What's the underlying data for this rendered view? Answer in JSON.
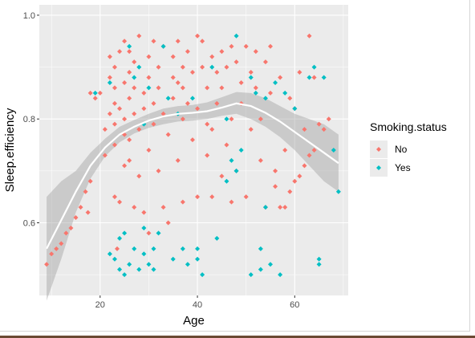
{
  "chart_data": {
    "type": "scatter",
    "title": "",
    "xlabel": "Age",
    "ylabel": "Sleep.efficiency",
    "xlim": [
      7.5,
      71
    ],
    "ylim": [
      0.46,
      1.02
    ],
    "x_ticks": [
      20,
      40,
      60
    ],
    "y_ticks": [
      0.6,
      0.8,
      1.0
    ],
    "y_tick_labels": [
      "0.6",
      "0.8",
      "1.0"
    ],
    "grid": true,
    "legend": {
      "title": "Smoking.status",
      "placement": "right"
    },
    "series": [
      {
        "name": "No",
        "color": "#F8766D",
        "points": [
          [
            9,
            0.52
          ],
          [
            10,
            0.54
          ],
          [
            11,
            0.55
          ],
          [
            12,
            0.56
          ],
          [
            13,
            0.58
          ],
          [
            14,
            0.59
          ],
          [
            15,
            0.61
          ],
          [
            16,
            0.63
          ],
          [
            17,
            0.66
          ],
          [
            17.5,
            0.62
          ],
          [
            18,
            0.68
          ],
          [
            18,
            0.85
          ],
          [
            19,
            0.84
          ],
          [
            20,
            0.85
          ],
          [
            21,
            0.73
          ],
          [
            21,
            0.78
          ],
          [
            22,
            0.81
          ],
          [
            22,
            0.88
          ],
          [
            22,
            0.92
          ],
          [
            23,
            0.75
          ],
          [
            23,
            0.79
          ],
          [
            23,
            0.83
          ],
          [
            23,
            0.86
          ],
          [
            23,
            0.9
          ],
          [
            23,
            0.65
          ],
          [
            23.5,
            0.55
          ],
          [
            24,
            0.64
          ],
          [
            24,
            0.82
          ],
          [
            24,
            0.93
          ],
          [
            25,
            0.77
          ],
          [
            25,
            0.8
          ],
          [
            25,
            0.87
          ],
          [
            25,
            0.95
          ],
          [
            25,
            0.71
          ],
          [
            26,
            0.72
          ],
          [
            26,
            0.76
          ],
          [
            26,
            0.84
          ],
          [
            26,
            0.89
          ],
          [
            26,
            0.93
          ],
          [
            27,
            0.81
          ],
          [
            27,
            0.86
          ],
          [
            27,
            0.63
          ],
          [
            27,
            0.91
          ],
          [
            28,
            0.78
          ],
          [
            28,
            0.69
          ],
          [
            28,
            0.96
          ],
          [
            29,
            0.82
          ],
          [
            29,
            0.85
          ],
          [
            29,
            0.62
          ],
          [
            30,
            0.74
          ],
          [
            30,
            0.88
          ],
          [
            30,
            0.92
          ],
          [
            30,
            0.58
          ],
          [
            31,
            0.79
          ],
          [
            31,
            0.83
          ],
          [
            31,
            0.95
          ],
          [
            32,
            0.7
          ],
          [
            32,
            0.86
          ],
          [
            32,
            0.9
          ],
          [
            33,
            0.63
          ],
          [
            33,
            0.81
          ],
          [
            33,
            0.94
          ],
          [
            34,
            0.77
          ],
          [
            34,
            0.6
          ],
          [
            35,
            0.84
          ],
          [
            35,
            0.88
          ],
          [
            35,
            0.92
          ],
          [
            36,
            0.72
          ],
          [
            36,
            0.87
          ],
          [
            36,
            0.95
          ],
          [
            37,
            0.8
          ],
          [
            37,
            0.86
          ],
          [
            37,
            0.9
          ],
          [
            37,
            0.64
          ],
          [
            38,
            0.93
          ],
          [
            38,
            0.83
          ],
          [
            39,
            0.76
          ],
          [
            39,
            0.89
          ],
          [
            40,
            0.96
          ],
          [
            40,
            0.82
          ],
          [
            40,
            0.65
          ],
          [
            41,
            0.9
          ],
          [
            41,
            0.95
          ],
          [
            42,
            0.73
          ],
          [
            42,
            0.86
          ],
          [
            42,
            0.79
          ],
          [
            43,
            0.78
          ],
          [
            43,
            0.92
          ],
          [
            43,
            0.65
          ],
          [
            44,
            0.83
          ],
          [
            44,
            0.89
          ],
          [
            45,
            0.69
          ],
          [
            45,
            0.93
          ],
          [
            45,
            0.86
          ],
          [
            46,
            0.75
          ],
          [
            46,
            0.9
          ],
          [
            47,
            0.8
          ],
          [
            47,
            0.94
          ],
          [
            47,
            0.64
          ],
          [
            48,
            0.91
          ],
          [
            48,
            0.7
          ],
          [
            49,
            0.83
          ],
          [
            49,
            0.87
          ],
          [
            50,
            0.94
          ],
          [
            50,
            0.65
          ],
          [
            51,
            0.89
          ],
          [
            51,
            0.78
          ],
          [
            52,
            0.93
          ],
          [
            52,
            0.86
          ],
          [
            53,
            0.72
          ],
          [
            53,
            0.8
          ],
          [
            54,
            0.91
          ],
          [
            54,
            0.63
          ],
          [
            55,
            0.85
          ],
          [
            55,
            0.94
          ],
          [
            56,
            0.7
          ],
          [
            56,
            0.67
          ],
          [
            57,
            0.63
          ],
          [
            57,
            0.88
          ],
          [
            58,
            0.74
          ],
          [
            58,
            0.63
          ],
          [
            59,
            0.66
          ],
          [
            59,
            0.84
          ],
          [
            60,
            0.68
          ],
          [
            60,
            0.82
          ],
          [
            61,
            0.69
          ],
          [
            61,
            0.89
          ],
          [
            62,
            0.71
          ],
          [
            62,
            0.78
          ],
          [
            63,
            0.73
          ],
          [
            63,
            0.96
          ],
          [
            64,
            0.74
          ],
          [
            64,
            0.88
          ],
          [
            65,
            0.79
          ],
          [
            66,
            0.78
          ],
          [
            67,
            0.8
          ]
        ]
      },
      {
        "name": "Yes",
        "color": "#00BFC4",
        "points": [
          [
            19,
            0.85
          ],
          [
            22,
            0.87
          ],
          [
            22,
            0.54
          ],
          [
            23,
            0.53
          ],
          [
            24,
            0.57
          ],
          [
            24,
            0.51
          ],
          [
            25,
            0.5
          ],
          [
            25,
            0.58
          ],
          [
            26,
            0.52
          ],
          [
            26,
            0.94
          ],
          [
            27,
            0.55
          ],
          [
            27,
            0.88
          ],
          [
            28,
            0.51
          ],
          [
            28,
            0.9
          ],
          [
            29,
            0.54
          ],
          [
            29,
            0.59
          ],
          [
            29,
            0.79
          ],
          [
            30,
            0.52
          ],
          [
            30,
            0.86
          ],
          [
            31,
            0.55
          ],
          [
            31,
            0.51
          ],
          [
            32,
            0.58
          ],
          [
            33,
            0.94
          ],
          [
            34,
            0.84
          ],
          [
            35,
            0.53
          ],
          [
            36,
            0.81
          ],
          [
            37,
            0.55
          ],
          [
            38,
            0.52
          ],
          [
            39,
            0.84
          ],
          [
            40,
            0.53
          ],
          [
            40,
            0.55
          ],
          [
            41,
            0.5
          ],
          [
            43,
            0.9
          ],
          [
            44,
            0.57
          ],
          [
            46,
            0.68
          ],
          [
            46,
            0.8
          ],
          [
            47,
            0.72
          ],
          [
            48,
            0.96
          ],
          [
            48,
            0.7
          ],
          [
            49,
            0.74
          ],
          [
            51,
            0.5
          ],
          [
            51,
            0.88
          ],
          [
            52,
            0.85
          ],
          [
            53,
            0.51
          ],
          [
            53,
            0.55
          ],
          [
            54,
            0.84
          ],
          [
            54,
            0.63
          ],
          [
            55,
            0.52
          ],
          [
            56,
            0.87
          ],
          [
            57,
            0.5
          ],
          [
            58,
            0.85
          ],
          [
            60,
            0.82
          ],
          [
            63,
            0.88
          ],
          [
            64,
            0.9
          ],
          [
            65,
            0.53
          ],
          [
            65,
            0.52
          ],
          [
            66,
            0.88
          ],
          [
            68,
            0.74
          ],
          [
            69,
            0.66
          ]
        ]
      }
    ],
    "smooth": {
      "x": [
        9,
        12,
        15,
        18,
        21,
        24,
        27,
        30,
        33,
        36,
        39,
        42,
        45,
        48,
        51,
        54,
        57,
        60,
        63,
        66,
        69
      ],
      "y": [
        0.55,
        0.605,
        0.66,
        0.71,
        0.745,
        0.77,
        0.785,
        0.797,
        0.805,
        0.81,
        0.812,
        0.815,
        0.822,
        0.83,
        0.825,
        0.812,
        0.795,
        0.775,
        0.755,
        0.735,
        0.715
      ],
      "lower": [
        0.45,
        0.53,
        0.62,
        0.685,
        0.728,
        0.755,
        0.772,
        0.783,
        0.79,
        0.795,
        0.797,
        0.8,
        0.806,
        0.81,
        0.8,
        0.785,
        0.765,
        0.74,
        0.71,
        0.68,
        0.66
      ],
      "upper": [
        0.65,
        0.68,
        0.7,
        0.735,
        0.762,
        0.785,
        0.798,
        0.81,
        0.82,
        0.825,
        0.827,
        0.832,
        0.842,
        0.852,
        0.85,
        0.84,
        0.825,
        0.81,
        0.8,
        0.79,
        0.77
      ]
    }
  }
}
